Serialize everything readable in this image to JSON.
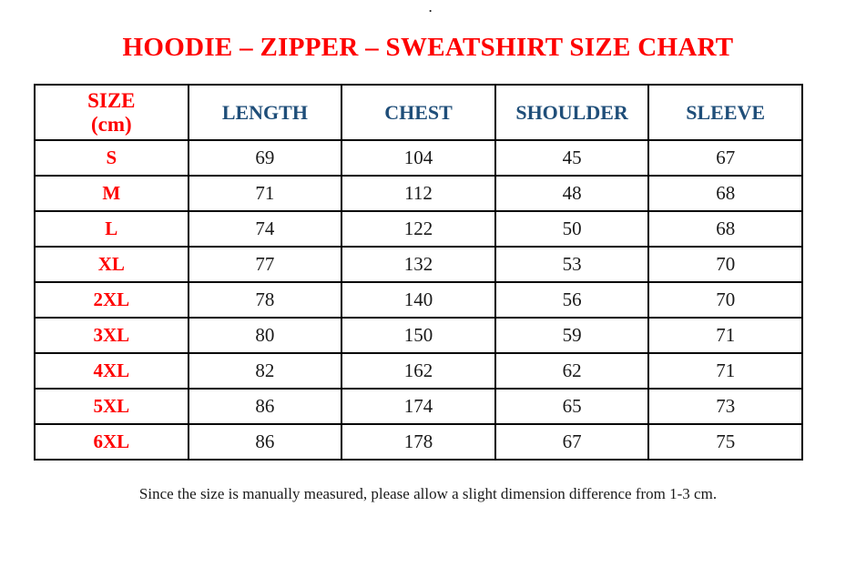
{
  "meta": {
    "top_mark": "."
  },
  "title": "HOODIE – ZIPPER – SWEATSHIRT SIZE CHART",
  "table": {
    "size_header": {
      "line1": "SIZE",
      "line2": "(cm)"
    },
    "columns": [
      "LENGTH",
      "CHEST",
      "SHOULDER",
      "SLEEVE"
    ],
    "rows": [
      {
        "size": "S",
        "values": [
          "69",
          "104",
          "45",
          "67"
        ]
      },
      {
        "size": "M",
        "values": [
          "71",
          "112",
          "48",
          "68"
        ]
      },
      {
        "size": "L",
        "values": [
          "74",
          "122",
          "50",
          "68"
        ]
      },
      {
        "size": "XL",
        "values": [
          "77",
          "132",
          "53",
          "70"
        ]
      },
      {
        "size": "2XL",
        "values": [
          "78",
          "140",
          "56",
          "70"
        ]
      },
      {
        "size": "3XL",
        "values": [
          "80",
          "150",
          "59",
          "71"
        ]
      },
      {
        "size": "4XL",
        "values": [
          "82",
          "162",
          "62",
          "71"
        ]
      },
      {
        "size": "5XL",
        "values": [
          "86",
          "174",
          "65",
          "73"
        ]
      },
      {
        "size": "6XL",
        "values": [
          "86",
          "178",
          "67",
          "75"
        ]
      }
    ]
  },
  "footnote": "Since the size is manually measured, please allow a slight dimension difference from 1-3 cm.",
  "colors": {
    "title_red": "#fe0000",
    "header_blue": "#1f4e79",
    "body_text": "#1a1a1a",
    "border": "#000000",
    "background": "#ffffff"
  }
}
